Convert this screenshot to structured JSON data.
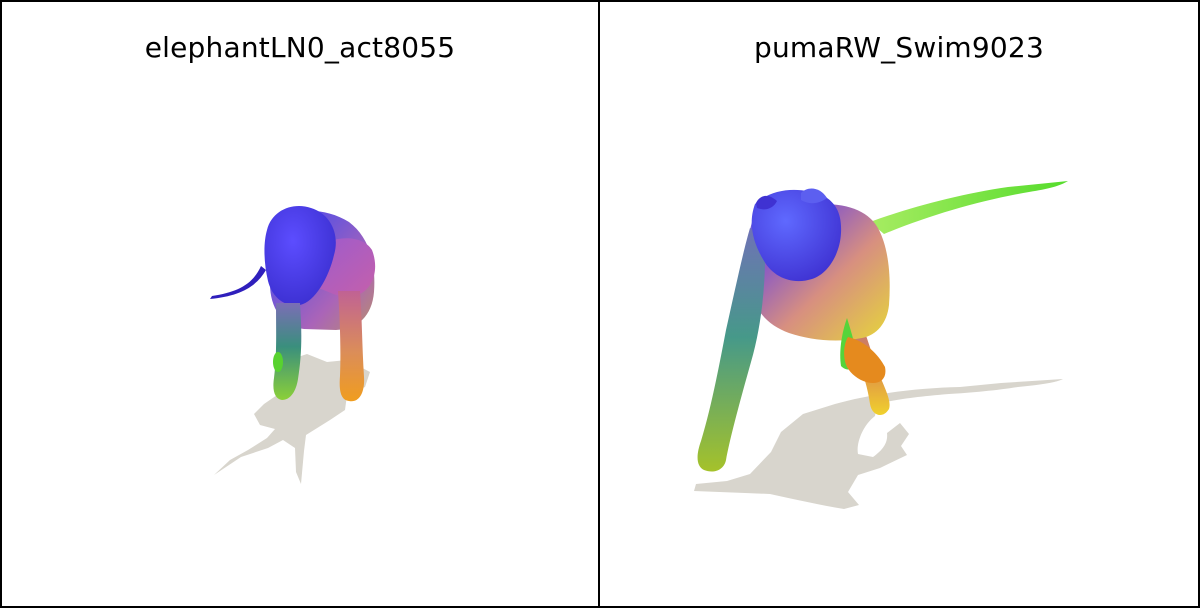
{
  "panels": [
    {
      "id": "left",
      "title": "elephantLN0_act8055",
      "icon": "elephant-figure"
    },
    {
      "id": "right",
      "title": "pumaRW_Swim9023",
      "icon": "puma-figure"
    }
  ],
  "colors": {
    "border": "#000000",
    "background": "#ffffff",
    "shadow": "#d8d5cd",
    "blue": "#3b3ef0",
    "purple": "#7a48df",
    "pink": "#b45ac1",
    "green": "#5fd84a",
    "yellow": "#e0d233",
    "orange": "#f29a24"
  }
}
